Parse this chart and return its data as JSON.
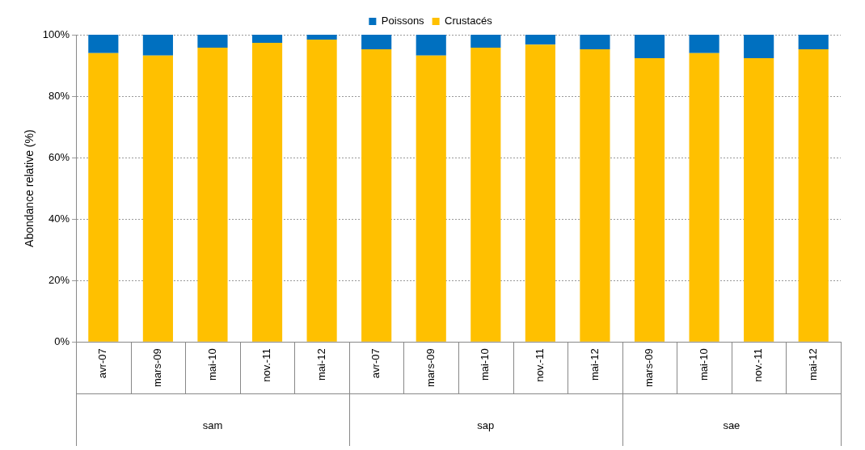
{
  "chart_data": {
    "type": "bar",
    "stacked": true,
    "ylabel": "Abondance relative (%)",
    "categories": [
      "avr-07",
      "mars-09",
      "mai-10",
      "nov.-11",
      "mai-12",
      "avr-07",
      "mars-09",
      "mai-10",
      "nov.-11",
      "mai-12",
      "mars-09",
      "mai-10",
      "nov.-11",
      "mai-12"
    ],
    "series": [
      {
        "name": "Crustacés",
        "color": "#ffc000",
        "values": [
          94,
          93.2,
          95.8,
          97.4,
          98.4,
          95.3,
          93.2,
          95.8,
          96.8,
          95.3,
          92.4,
          94,
          92.4,
          95.3
        ]
      },
      {
        "name": "Poissons",
        "color": "#0070c0",
        "values": [
          6,
          6.8,
          4.2,
          2.6,
          1.6,
          4.7,
          6.8,
          4.2,
          3.2,
          4.7,
          7.6,
          6,
          7.6,
          4.7
        ]
      }
    ],
    "ylim": [
      0,
      100
    ],
    "yticks": [
      {
        "value": 0,
        "label": "0%"
      },
      {
        "value": 20,
        "label": "20%"
      },
      {
        "value": 40,
        "label": "40%"
      },
      {
        "value": 60,
        "label": "60%"
      },
      {
        "value": 80,
        "label": "80%"
      },
      {
        "value": 100,
        "label": "100%"
      }
    ],
    "grid": "y",
    "legend": "top",
    "annotations": [
      "sam",
      "sap",
      "sae"
    ]
  }
}
